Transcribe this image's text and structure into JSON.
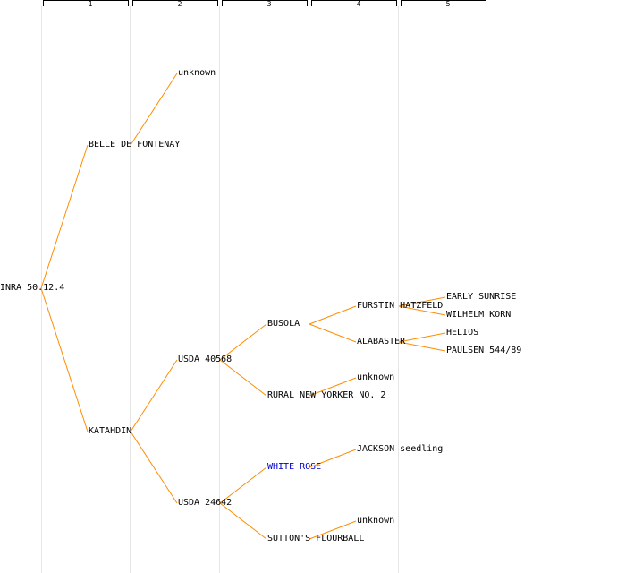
{
  "generations": [
    "1",
    "2",
    "3",
    "4",
    "5"
  ],
  "colors": {
    "edge": "#ff8c00",
    "highlight": "#0000cc",
    "guide": "#e6e6e6"
  },
  "nodes": {
    "root": "INRA 50.12.4",
    "belle": "BELLE DE FONTENAY",
    "belle_parent": "unknown",
    "katahdin": "KATAHDIN",
    "usda40568": "USDA 40568",
    "usda24642": "USDA 24642",
    "busola": "BUSOLA",
    "rural": "RURAL NEW YORKER NO. 2",
    "rural_parent": "unknown",
    "whiterose": "WHITE ROSE",
    "jackson": "JACKSON seedling",
    "sutton": "SUTTON'S FLOURBALL",
    "sutton_parent": "unknown",
    "furstin": "FURSTIN HATZFELD",
    "alabaster": "ALABASTER",
    "early": "EARLY SUNRISE",
    "wilhelm": "WILHELM KORN",
    "helios": "HELIOS",
    "paulsen": "PAULSEN 544/89"
  }
}
